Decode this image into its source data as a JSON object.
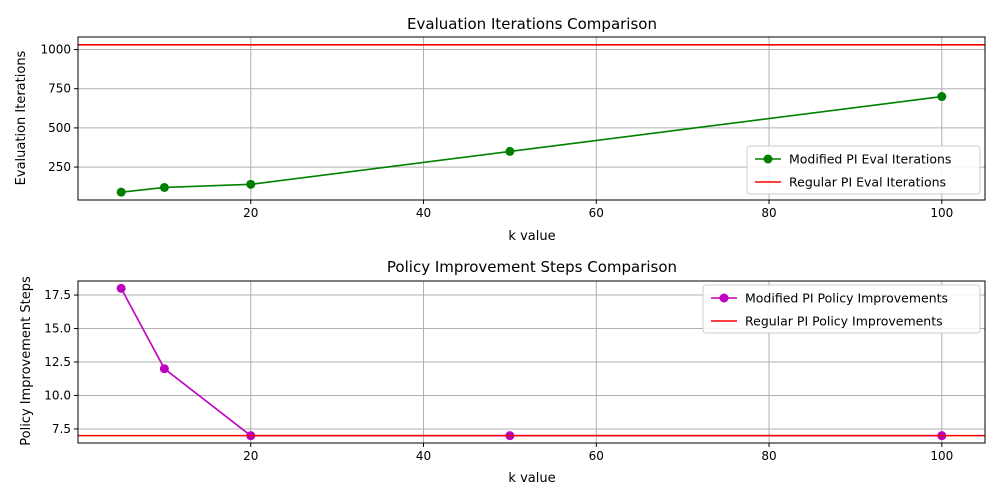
{
  "chart_data": [
    {
      "type": "line",
      "title": "Evaluation Iterations Comparison",
      "xlabel": "k value",
      "ylabel": "Evaluation Iterations",
      "xlim": [
        0,
        105
      ],
      "ylim": [
        40,
        1080
      ],
      "xticks": [
        20,
        40,
        60,
        80,
        100
      ],
      "yticks": [
        250,
        500,
        750,
        1000
      ],
      "ytick_labels": [
        "250",
        "500",
        "750",
        "1000"
      ],
      "grid": true,
      "legend_position": "lower-right",
      "series": [
        {
          "name": "Modified PI Eval Iterations",
          "color": "#008000",
          "marker": "circle",
          "x": [
            5,
            10,
            20,
            50,
            100
          ],
          "y": [
            90,
            120,
            140,
            350,
            700
          ]
        },
        {
          "name": "Regular PI Eval Iterations",
          "color": "#ff0000",
          "style": "horizontal-line",
          "y": 1030
        }
      ]
    },
    {
      "type": "line",
      "title": "Policy Improvement Steps Comparison",
      "xlabel": "k value",
      "ylabel": "Policy Improvement Steps",
      "xlim": [
        0,
        105
      ],
      "ylim": [
        6.45,
        18.55
      ],
      "xticks": [
        20,
        40,
        60,
        80,
        100
      ],
      "yticks": [
        7.5,
        10.0,
        12.5,
        15.0,
        17.5
      ],
      "ytick_labels": [
        "7.5",
        "10.0",
        "12.5",
        "15.0",
        "17.5"
      ],
      "grid": true,
      "legend_position": "upper-right",
      "series": [
        {
          "name": "Modified PI Policy Improvements",
          "color": "#bf00bf",
          "marker": "circle",
          "x": [
            5,
            10,
            20,
            50,
            100
          ],
          "y": [
            18,
            12,
            7,
            7,
            7
          ]
        },
        {
          "name": "Regular PI Policy Improvements",
          "color": "#ff0000",
          "style": "horizontal-line",
          "y": 7
        }
      ]
    }
  ]
}
